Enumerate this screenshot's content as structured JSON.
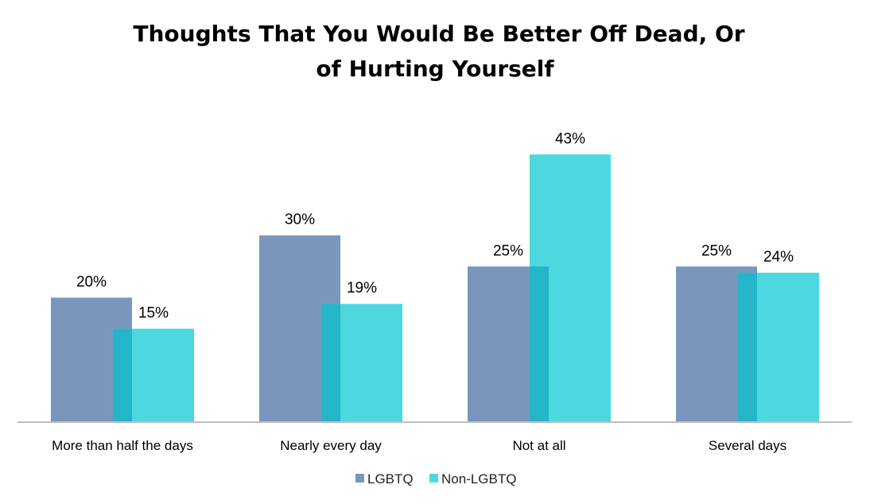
{
  "chart_data": {
    "type": "bar",
    "title_lines": [
      "Thoughts That You Would Be Better Off Dead, Or",
      "of Hurting Yourself"
    ],
    "xlabel": "",
    "ylabel": "",
    "categories": [
      "More than half the days",
      "Nearly every day",
      "Not at all",
      "Several days"
    ],
    "series": [
      {
        "name": "LGBTQ",
        "values": [
          20,
          30,
          25,
          25
        ],
        "labels": [
          "20%",
          "30%",
          "25%",
          "25%"
        ],
        "color": "#7b96bd"
      },
      {
        "name": "Non-LGBTQ",
        "values": [
          15,
          19,
          43,
          24
        ],
        "labels": [
          "15%",
          "19%",
          "43%",
          "24%"
        ],
        "color": "#4dd8df"
      }
    ],
    "overlap_color": "#25b5c9",
    "ylim": [
      0,
      50
    ],
    "grid": false,
    "legend_position": "bottom",
    "axis_color": "#bfbfbf"
  }
}
